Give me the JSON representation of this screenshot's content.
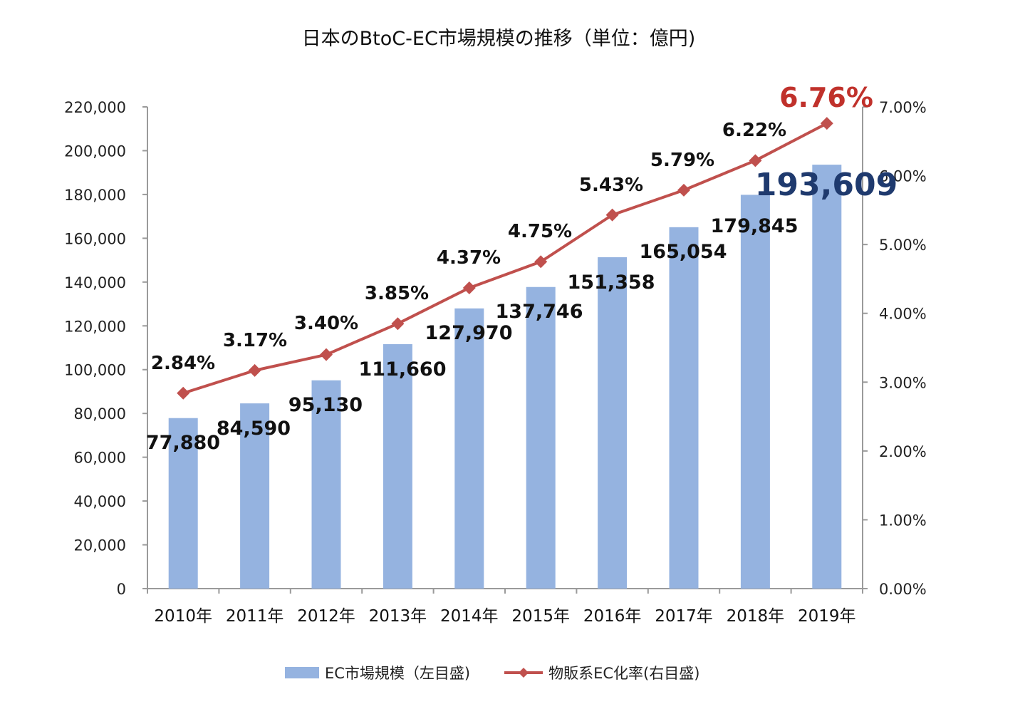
{
  "chart_data": {
    "type": "bar+line",
    "title": "日本のBtoC-EC市場規模の推移（単位：億円)",
    "categories": [
      "2010年",
      "2011年",
      "2012年",
      "2013年",
      "2014年",
      "2015年",
      "2016年",
      "2017年",
      "2018年",
      "2019年"
    ],
    "series": [
      {
        "name": "EC市場規模（左目盛)",
        "type": "bar",
        "axis": "left",
        "color": "#95b3e0",
        "values": [
          77880,
          84590,
          95130,
          111660,
          127970,
          137746,
          151358,
          165054,
          179845,
          193609
        ],
        "labels": [
          "77,880",
          "84,590",
          "95,130",
          "111,660",
          "127,970",
          "137,746",
          "151,358",
          "165,054",
          "179,845",
          "193,609"
        ]
      },
      {
        "name": "物販系EC化率(右目盛)",
        "type": "line",
        "axis": "right",
        "color": "#c0504d",
        "values": [
          2.84,
          3.17,
          3.4,
          3.85,
          4.37,
          4.75,
          5.43,
          5.79,
          6.22,
          6.76
        ],
        "labels": [
          "2.84%",
          "3.17%",
          "3.40%",
          "3.85%",
          "4.37%",
          "4.75%",
          "5.43%",
          "5.79%",
          "6.22%",
          "6.76%"
        ]
      }
    ],
    "y_left": {
      "ylim": [
        0,
        220000
      ],
      "ticks": [
        "0",
        "20,000",
        "40,000",
        "60,000",
        "80,000",
        "100,000",
        "120,000",
        "140,000",
        "160,000",
        "180,000",
        "200,000",
        "220,000"
      ]
    },
    "y_right": {
      "ylim": [
        0,
        7
      ],
      "ticks": [
        "0.00%",
        "1.00%",
        "2.00%",
        "3.00%",
        "4.00%",
        "5.00%",
        "6.00%",
        "7.00%"
      ]
    },
    "highlight": {
      "bar_label_color": "#1f3a6e",
      "line_label_color": "#c0312b"
    },
    "grid": false,
    "legend_position": "bottom"
  }
}
